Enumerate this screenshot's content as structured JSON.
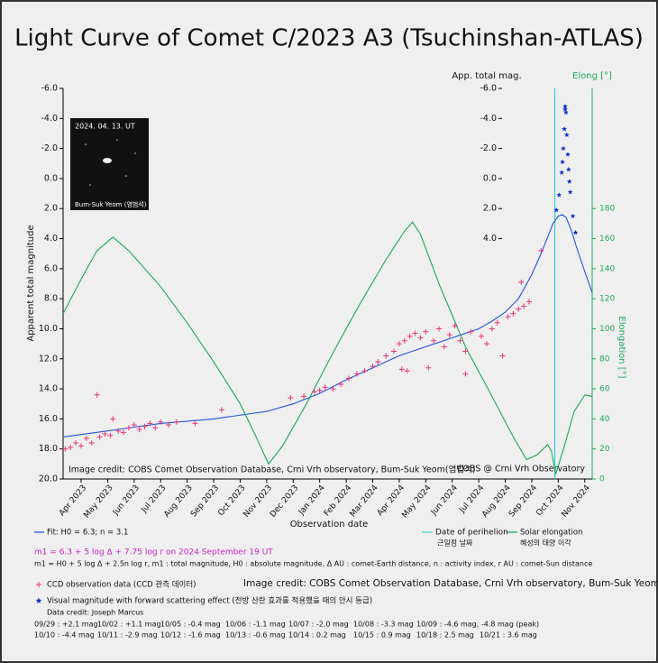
{
  "chart_data": {
    "type": "scatter",
    "title": "Light Curve of Comet C/2023 A3 (Tsuchinshan-ATLAS)",
    "xlabel": "Observation date",
    "ylabel": "Apparent total magnitude",
    "inner_axis_label": "App. total mag.",
    "y2_header": "Elong [°]",
    "y2label": "Elongation [°]",
    "xlim": [
      -0.68,
      19.28
    ],
    "xticks": [
      {
        "value": 0,
        "label": "Apr 2023"
      },
      {
        "value": 1,
        "label": "May 2023"
      },
      {
        "value": 2,
        "label": "Jun 2023"
      },
      {
        "value": 3,
        "label": "Jul 2023"
      },
      {
        "value": 4,
        "label": "Aug 2023"
      },
      {
        "value": 5,
        "label": "Sep 2023"
      },
      {
        "value": 6,
        "label": "Oct 2023"
      },
      {
        "value": 7,
        "label": "Nov 2023"
      },
      {
        "value": 8,
        "label": "Dec 2023"
      },
      {
        "value": 9,
        "label": "Jan 2024"
      },
      {
        "value": 10,
        "label": "Feb 2024"
      },
      {
        "value": 11,
        "label": "Mar 2024"
      },
      {
        "value": 12,
        "label": "Apr 2024"
      },
      {
        "value": 13,
        "label": "May 2024"
      },
      {
        "value": 14,
        "label": "Jun 2024"
      },
      {
        "value": 15,
        "label": "Jul 2024"
      },
      {
        "value": 16,
        "label": "Aug 2024"
      },
      {
        "value": 17,
        "label": "Sep 2024"
      },
      {
        "value": 18,
        "label": "Oct 2024"
      },
      {
        "value": 19,
        "label": "Nov 2024"
      }
    ],
    "ylim": [
      -6,
      20
    ],
    "y_inverted": true,
    "yticks": [
      {
        "value": -6,
        "label": "-6.0"
      },
      {
        "value": -4,
        "label": "-4.0"
      },
      {
        "value": -2,
        "label": "-2.0"
      },
      {
        "value": 0,
        "label": "0.0"
      },
      {
        "value": 2,
        "label": "2.0"
      },
      {
        "value": 4,
        "label": "4.0"
      },
      {
        "value": 6,
        "label": "6.0"
      },
      {
        "value": 8,
        "label": "8.0"
      },
      {
        "value": 10,
        "label": "10.0"
      },
      {
        "value": 12,
        "label": "12.0"
      },
      {
        "value": 14,
        "label": "14.0"
      },
      {
        "value": 16,
        "label": "16.0"
      },
      {
        "value": 18,
        "label": "18.0"
      },
      {
        "value": 20,
        "label": "20.0"
      }
    ],
    "inner_yticks": [
      {
        "value": -6,
        "label": "-6.0"
      },
      {
        "value": -4,
        "label": "-4.0"
      },
      {
        "value": -2,
        "label": "-2.0"
      },
      {
        "value": 0,
        "label": "0.0"
      },
      {
        "value": 2,
        "label": "2.0"
      },
      {
        "value": 4,
        "label": "4.0"
      }
    ],
    "y2lim": [
      0,
      260
    ],
    "y2ticks": [
      0,
      20,
      40,
      60,
      80,
      100,
      120,
      140,
      160,
      180
    ],
    "y2_color": "#1aaa55",
    "perihelion": {
      "x": 17.87,
      "label": "Date of perihelion",
      "label_ko": "근일점 날짜",
      "color": "#33ccdd"
    },
    "series": [
      {
        "name": "Fit: H0 = 6.3; n = 3.1",
        "type": "line",
        "color": "#2255dd",
        "x": [
          -0.68,
          1,
          3,
          5,
          7,
          8,
          9,
          10,
          11,
          12,
          13,
          14,
          15,
          15.5,
          16,
          16.5,
          17,
          17.3,
          17.6,
          17.8,
          18.0,
          18.15,
          18.3,
          18.5,
          18.75,
          19.0,
          19.28
        ],
        "values": [
          17.2,
          16.8,
          16.3,
          16.0,
          15.5,
          15.0,
          14.3,
          13.4,
          12.6,
          11.8,
          11.2,
          10.6,
          10.0,
          9.5,
          8.9,
          8.0,
          6.4,
          5.2,
          3.9,
          3.0,
          2.5,
          2.4,
          2.6,
          3.5,
          4.9,
          6.2,
          7.6
        ]
      },
      {
        "name": "Solar elongation",
        "subname": "혜성의 태양 이각",
        "type": "line",
        "color": "#1aaa55",
        "axis": "y2",
        "x": [
          -0.68,
          0,
          0.6,
          1.2,
          1.8,
          3,
          4,
          5,
          6,
          6.6,
          7.07,
          7.6,
          8.5,
          9.5,
          10.5,
          11.5,
          12.2,
          12.5,
          12.8,
          13.5,
          14.5,
          15.5,
          16.3,
          16.8,
          17.2,
          17.6,
          17.75,
          17.9,
          18.2,
          18.6,
          19.0,
          19.28
        ],
        "values": [
          110,
          133,
          152,
          161,
          152,
          128,
          104,
          78,
          50,
          28,
          10,
          22,
          50,
          84,
          116,
          146,
          165,
          171,
          163,
          130,
          88,
          55,
          28,
          13,
          16,
          23,
          18,
          3,
          20,
          45,
          56,
          55
        ]
      },
      {
        "name": "CCD observation data (CCD 관측 데이터)",
        "type": "scatter",
        "marker": "plus",
        "color": "#ee3377",
        "x": [
          -0.6,
          -0.4,
          -0.2,
          0,
          0.2,
          0.4,
          0.6,
          0.7,
          0.9,
          1.1,
          1.2,
          1.4,
          1.6,
          1.8,
          2.0,
          2.2,
          2.4,
          2.6,
          2.8,
          3.0,
          3.3,
          3.6,
          4.3,
          5.3,
          7.9,
          8.4,
          8.8,
          9.0,
          9.2,
          9.5,
          9.8,
          10.1,
          10.4,
          10.7,
          11.0,
          11.2,
          11.5,
          11.8,
          12.0,
          12.1,
          12.2,
          12.3,
          12.4,
          12.6,
          12.8,
          13.0,
          13.1,
          13.3,
          13.5,
          13.7,
          13.9,
          14.1,
          14.3,
          14.5,
          14.5,
          14.7,
          15.1,
          15.3,
          15.5,
          15.7,
          15.9,
          16.1,
          16.3,
          16.5,
          16.6,
          16.7,
          16.9,
          17.35
        ],
        "values": [
          18.0,
          17.9,
          17.6,
          17.8,
          17.3,
          17.6,
          14.4,
          17.2,
          17.0,
          17.1,
          16.0,
          16.8,
          16.9,
          16.6,
          16.4,
          16.7,
          16.5,
          16.3,
          16.6,
          16.2,
          16.4,
          16.2,
          16.3,
          15.4,
          14.6,
          14.5,
          14.2,
          14.1,
          13.9,
          14.0,
          13.7,
          13.3,
          13.0,
          12.8,
          12.5,
          12.2,
          11.8,
          11.5,
          11.0,
          12.7,
          10.8,
          12.8,
          10.5,
          10.3,
          10.6,
          10.2,
          12.6,
          10.8,
          10.0,
          11.2,
          10.4,
          9.8,
          10.8,
          11.5,
          13.0,
          10.2,
          10.5,
          11.0,
          10.0,
          9.6,
          11.8,
          9.2,
          9.0,
          8.7,
          6.9,
          8.5,
          8.2,
          4.8
        ]
      },
      {
        "name": "Visual magnitude with forward scattering effect (전방 산란 효과를 적용했을 때의 안시 등급)",
        "type": "scatter",
        "marker": "star",
        "color": "#1133cc",
        "x": [
          17.93,
          18.03,
          18.13,
          18.16,
          18.19,
          18.23,
          18.26,
          18.26,
          18.29,
          18.32,
          18.36,
          18.39,
          18.42,
          18.45,
          18.55,
          18.65
        ],
        "values": [
          2.1,
          1.1,
          -0.4,
          -1.1,
          -2.0,
          -3.3,
          -4.6,
          -4.8,
          -4.4,
          -2.9,
          -1.6,
          -0.6,
          0.2,
          0.9,
          2.5,
          3.6
        ]
      }
    ],
    "annotations": {
      "photo_date": "2024. 04. 13. UT",
      "photo_credit": "Bum-Suk Yeom (염범석)",
      "plot_credit": "Image credit: COBS Comet Observation Database, Crni Vrh observatory, Bum-Suk Yeom(염범석)",
      "cobs": "COBS @ Crni Vrh Observatory",
      "fit_formula": "m1 = 6.3 + 5 log Δ + 7.75 log r  on 2024 September 19 UT",
      "formula_def": "m1 = H0 + 5 log Δ + 2.5n log r, m1 : total magnitude, H0 : absolute magnitude, Δ AU : comet-Earth distance, n : activity index, r AU : comet-Sun distance",
      "image_credit": "Image credit: COBS Comet Observation Database, Crni Vrh observatory, Bum-Suk Yeom(염범석)",
      "data_credit": "Data credit: Joseph Marcus",
      "notes": [
        "09/29 : +2.1 mag",
        "10/02 : +1.1 mag",
        "10/05 : -0.4 mag",
        "10/06 : -1.1 mag",
        "10/07 : -2.0 mag",
        "10/08 : -3.3 mag",
        "10/09 : -4.6 mag, -4.8 mag (peak)",
        "10/10 : -4.4 mag",
        "10/11 : -2.9 mag",
        "10/12 : -1.6 mag",
        "10/13 : -0.6 mag",
        "10/14 : 0.2 mag",
        "10/15 : 0.9 mag",
        "10/18 : 2.5 mag",
        "10/21 : 3.6 mag"
      ]
    }
  }
}
